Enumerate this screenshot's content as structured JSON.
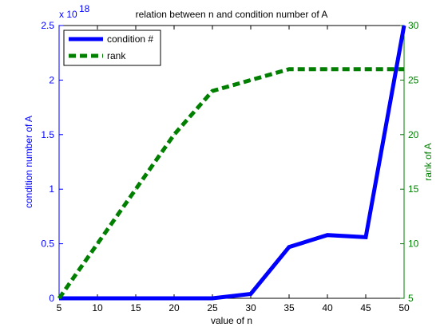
{
  "chart_data": {
    "type": "line",
    "title": "relation between n and condition number of A",
    "xlabel": "value of n",
    "ylabel_left": "condition number of A",
    "ylabel_right": "rank of A",
    "left_exponent_base": "x 10",
    "left_exponent_power": "18",
    "xlim": [
      5,
      50
    ],
    "ylim_left": [
      0,
      2.5
    ],
    "ylim_right": [
      5,
      30
    ],
    "x_ticks": [
      "5",
      "10",
      "15",
      "20",
      "25",
      "30",
      "35",
      "40",
      "45",
      "50"
    ],
    "y_left_ticks": [
      "0",
      "0.5",
      "1",
      "1.5",
      "2",
      "2.5"
    ],
    "y_right_ticks": [
      "5",
      "10",
      "15",
      "20",
      "25",
      "30"
    ],
    "grid": false,
    "legend_placement": "top-left",
    "colors": {
      "condition": "#0000ff",
      "rank": "#007f00",
      "axis_left": "#0000ff",
      "axis_right": "#007f00",
      "frame": "#000000"
    },
    "series": [
      {
        "name": "condition #",
        "axis": "left",
        "style": "solid",
        "x": [
          5,
          10,
          15,
          20,
          25,
          30,
          35,
          40,
          45,
          50
        ],
        "y": [
          0,
          0,
          0,
          0,
          0,
          0.04,
          0.47,
          0.58,
          0.56,
          2.5
        ]
      },
      {
        "name": "rank",
        "axis": "right",
        "style": "dashed",
        "x": [
          5,
          10,
          15,
          20,
          25,
          30,
          35,
          40,
          45,
          50
        ],
        "y": [
          5,
          10,
          15,
          20,
          24,
          25,
          26,
          26,
          26,
          26
        ]
      }
    ]
  }
}
